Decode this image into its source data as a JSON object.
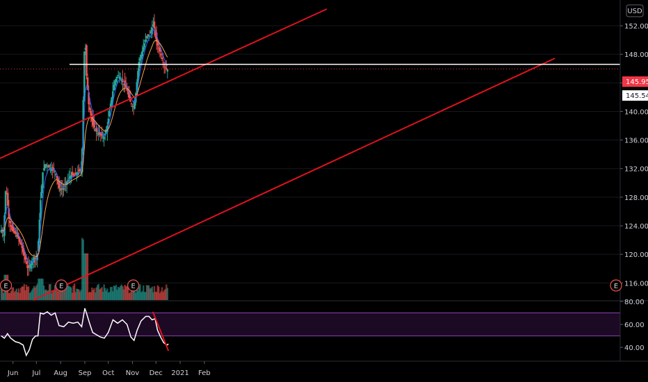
{
  "header": {
    "currency": "USD"
  },
  "chart_data": {
    "type": "candlestick",
    "xaxis": {
      "labels": [
        "Jun",
        "Jul",
        "Aug",
        "Sep",
        "Oct",
        "Nov",
        "Dec",
        "2021",
        "Feb"
      ]
    },
    "price_axis": {
      "ticks": [
        116,
        120,
        124,
        128,
        132,
        136,
        140,
        144,
        148,
        152
      ],
      "range": [
        113.6,
        155.6
      ],
      "last_price": "145.95",
      "level_label": "145.54",
      "last_price_color": "#f23645"
    },
    "rsi_axis": {
      "ticks": [
        40,
        60,
        80
      ],
      "range": [
        28,
        80
      ],
      "band": [
        50,
        70
      ]
    },
    "colors": {
      "up": "#26a69a",
      "down": "#ef5350",
      "trendline": "#e0131e",
      "ema_fast": "#2962ff",
      "ema_slow": "#f7a54a",
      "rsi": "#ffffff",
      "rsi_band": "#8e3fb4",
      "support": "#ffffff"
    },
    "series": [
      {
        "name": "price",
        "points": [
          [
            "May 17",
            123.4
          ],
          [
            "May 20",
            122.6
          ],
          [
            "May 23",
            129.8
          ],
          [
            "May 27",
            124.8
          ],
          [
            "May 31",
            123.4
          ],
          [
            "Jun 4",
            122.9
          ],
          [
            "Jun 8",
            122.3
          ],
          [
            "Jun 12",
            121.1
          ],
          [
            "Jun 16",
            119.6
          ],
          [
            "Jun 20",
            117.9
          ],
          [
            "Jun 24",
            118.8
          ],
          [
            "Jun 28",
            119.6
          ],
          [
            "Jul 1",
            119.2
          ],
          [
            "Jul 3",
            120.6
          ],
          [
            "Jul 6",
            127.0
          ],
          [
            "Jul 9",
            131.4
          ],
          [
            "Jul 12",
            132.6
          ],
          [
            "Jul 16",
            132.4
          ],
          [
            "Jul 20",
            132.0
          ],
          [
            "Jul 25",
            131.6
          ],
          [
            "Jul 30",
            129.3
          ],
          [
            "Aug 4",
            129.1
          ],
          [
            "Aug 9",
            130.2
          ],
          [
            "Aug 14",
            131.1
          ],
          [
            "Aug 19",
            131.0
          ],
          [
            "Aug 24",
            131.6
          ],
          [
            "Aug 28",
            131.9
          ],
          [
            "Sep 1",
            151.3
          ],
          [
            "Sep 3",
            145.3
          ],
          [
            "Sep 6",
            141.0
          ],
          [
            "Sep 11",
            138.2
          ],
          [
            "Sep 16",
            137.1
          ],
          [
            "Sep 21",
            136.7
          ],
          [
            "Sep 26",
            136.4
          ],
          [
            "Sep 30",
            138.1
          ],
          [
            "Oct 4",
            141.1
          ],
          [
            "Oct 9",
            144.2
          ],
          [
            "Oct 14",
            145.1
          ],
          [
            "Oct 19",
            144.2
          ],
          [
            "Oct 24",
            143.3
          ],
          [
            "Oct 29",
            141.4
          ],
          [
            "Nov 2",
            140.5
          ],
          [
            "Nov 5",
            142.3
          ],
          [
            "Nov 9",
            146.8
          ],
          [
            "Nov 14",
            148.6
          ],
          [
            "Nov 19",
            150.5
          ],
          [
            "Nov 24",
            151.0
          ],
          [
            "Nov 28",
            152.3
          ],
          [
            "Dec 2",
            149.6
          ],
          [
            "Dec 6",
            148.4
          ],
          [
            "Dec 10",
            146.9
          ],
          [
            "Dec 14",
            145.9
          ],
          [
            "Dec 17",
            145.95
          ]
        ]
      },
      {
        "name": "rsi",
        "points": [
          [
            "May 17",
            50
          ],
          [
            "May 21",
            48
          ],
          [
            "May 25",
            52
          ],
          [
            "May 29",
            48
          ],
          [
            "Jun 4",
            45
          ],
          [
            "Jun 9",
            44
          ],
          [
            "Jun 14",
            42
          ],
          [
            "Jun 18",
            33
          ],
          [
            "Jun 22",
            38
          ],
          [
            "Jun 26",
            47
          ],
          [
            "Jun 30",
            50
          ],
          [
            "Jul 3",
            50
          ],
          [
            "Jul 6",
            70
          ],
          [
            "Jul 10",
            69
          ],
          [
            "Jul 15",
            71
          ],
          [
            "Jul 20",
            68
          ],
          [
            "Jul 25",
            70
          ],
          [
            "Jul 30",
            59
          ],
          [
            "Aug 5",
            58
          ],
          [
            "Aug 11",
            62
          ],
          [
            "Aug 17",
            61
          ],
          [
            "Aug 23",
            62
          ],
          [
            "Aug 28",
            58
          ],
          [
            "Sep 1",
            74
          ],
          [
            "Sep 3",
            70
          ],
          [
            "Sep 7",
            61
          ],
          [
            "Sep 11",
            53
          ],
          [
            "Sep 16",
            51
          ],
          [
            "Sep 21",
            49
          ],
          [
            "Sep 26",
            48
          ],
          [
            "Oct 1",
            53
          ],
          [
            "Oct 7",
            64
          ],
          [
            "Oct 13",
            61
          ],
          [
            "Oct 19",
            64
          ],
          [
            "Oct 25",
            60
          ],
          [
            "Oct 30",
            49
          ],
          [
            "Nov 3",
            46
          ],
          [
            "Nov 7",
            55
          ],
          [
            "Nov 12",
            63
          ],
          [
            "Nov 18",
            67
          ],
          [
            "Nov 22",
            67
          ],
          [
            "Nov 26",
            64
          ],
          [
            "Nov 30",
            65
          ],
          [
            "Dec 3",
            55
          ],
          [
            "Dec 7",
            49
          ],
          [
            "Dec 11",
            44
          ],
          [
            "Dec 15",
            42
          ],
          [
            "Dec 17",
            43
          ]
        ]
      }
    ],
    "annotations": [
      "E",
      "E",
      "E",
      "E"
    ]
  }
}
